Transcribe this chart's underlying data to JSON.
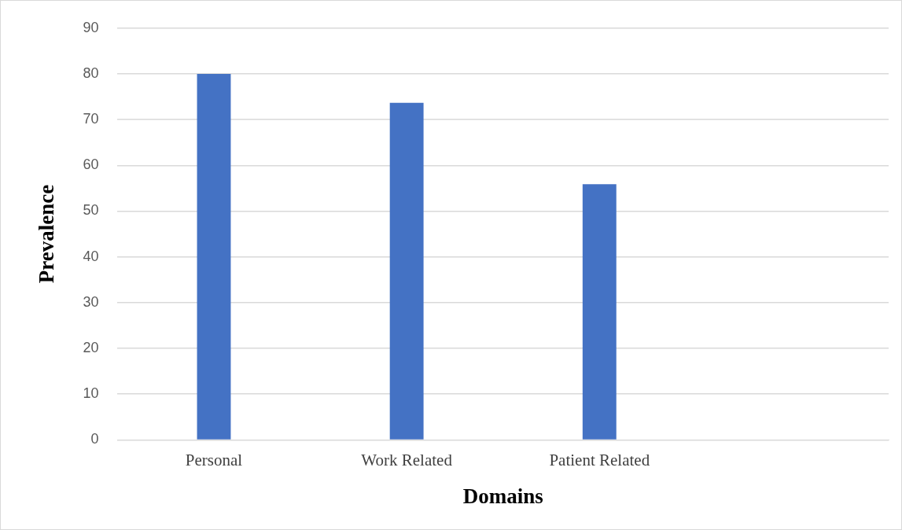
{
  "chart_data": {
    "type": "bar",
    "xlabel": "Domains",
    "ylabel": "Prevalence",
    "categories": [
      "Personal",
      "Work Related",
      "Patient Related",
      null
    ],
    "values": [
      80,
      73.7,
      55.9,
      null
    ],
    "color": "#4472c4",
    "ylim": [
      0,
      90
    ],
    "yticks": [
      0,
      10,
      20,
      30,
      40,
      50,
      60,
      70,
      80,
      90
    ],
    "grid": "y",
    "legend": false
  }
}
